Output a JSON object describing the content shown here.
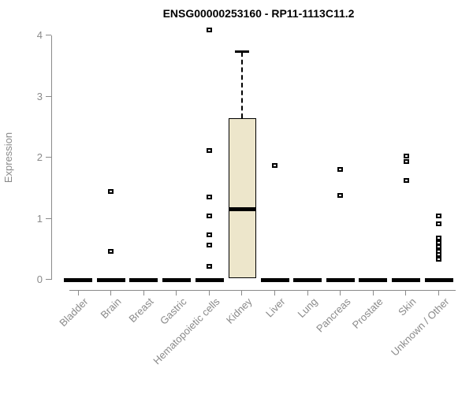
{
  "chart_data": {
    "type": "boxplot",
    "title": "ENSG00000253160 - RP11-1113C11.2",
    "ylabel": "Expression",
    "xlabel": "",
    "ylim": [
      0,
      4
    ],
    "yticks": [
      0,
      1,
      2,
      3,
      4
    ],
    "grid": false,
    "categories": [
      "Bladder",
      "Brain",
      "Breast",
      "Gastric",
      "Hematopoietic cells",
      "Kidney",
      "Liver",
      "Lung",
      "Pancreas",
      "Prostate",
      "Skin",
      "Unknown / Other"
    ],
    "boxes": [
      {
        "category": "Bladder",
        "median": 0,
        "q1": 0,
        "q3": 0,
        "whisker_low": 0,
        "whisker_high": 0,
        "outliers": []
      },
      {
        "category": "Brain",
        "median": 0,
        "q1": 0,
        "q3": 0,
        "whisker_low": 0,
        "whisker_high": 0,
        "outliers": [
          1.44,
          0.46
        ]
      },
      {
        "category": "Breast",
        "median": 0,
        "q1": 0,
        "q3": 0,
        "whisker_low": 0,
        "whisker_high": 0,
        "outliers": []
      },
      {
        "category": "Gastric",
        "median": 0,
        "q1": 0,
        "q3": 0,
        "whisker_low": 0,
        "whisker_high": 0,
        "outliers": []
      },
      {
        "category": "Hematopoietic cells",
        "median": 0,
        "q1": 0,
        "q3": 0,
        "whisker_low": 0,
        "whisker_high": 0,
        "outliers": [
          4.09,
          2.11,
          1.35,
          1.04,
          0.74,
          0.57,
          0.22
        ]
      },
      {
        "category": "Kidney",
        "median": 1.16,
        "q1": 0.02,
        "q3": 2.64,
        "whisker_low": 0.02,
        "whisker_high": 3.73,
        "outliers": []
      },
      {
        "category": "Liver",
        "median": 0,
        "q1": 0,
        "q3": 0,
        "whisker_low": 0,
        "whisker_high": 0,
        "outliers": [
          1.87
        ]
      },
      {
        "category": "Lung",
        "median": 0,
        "q1": 0,
        "q3": 0,
        "whisker_low": 0,
        "whisker_high": 0,
        "outliers": []
      },
      {
        "category": "Pancreas",
        "median": 0,
        "q1": 0,
        "q3": 0,
        "whisker_low": 0,
        "whisker_high": 0,
        "outliers": [
          1.81,
          1.38
        ]
      },
      {
        "category": "Prostate",
        "median": 0,
        "q1": 0,
        "q3": 0,
        "whisker_low": 0,
        "whisker_high": 0,
        "outliers": []
      },
      {
        "category": "Skin",
        "median": 0,
        "q1": 0,
        "q3": 0,
        "whisker_low": 0,
        "whisker_high": 0,
        "outliers": [
          2.02,
          1.94,
          1.62
        ]
      },
      {
        "category": "Unknown / Other",
        "median": 0,
        "q1": 0,
        "q3": 0,
        "whisker_low": 0,
        "whisker_high": 0,
        "outliers": [
          1.05,
          0.92,
          0.68,
          0.61,
          0.54,
          0.47,
          0.41,
          0.34
        ]
      }
    ],
    "style": {
      "box_fill": "#EDE6CB",
      "box_border": "#000000",
      "median_color": "#000000",
      "whisker_style": "dashed",
      "outlier_marker": "open-square",
      "axis_color": "#8a8a8a",
      "tick_label_color": "#8a8a8a",
      "title_color": "#000000",
      "background": "#ffffff"
    }
  }
}
